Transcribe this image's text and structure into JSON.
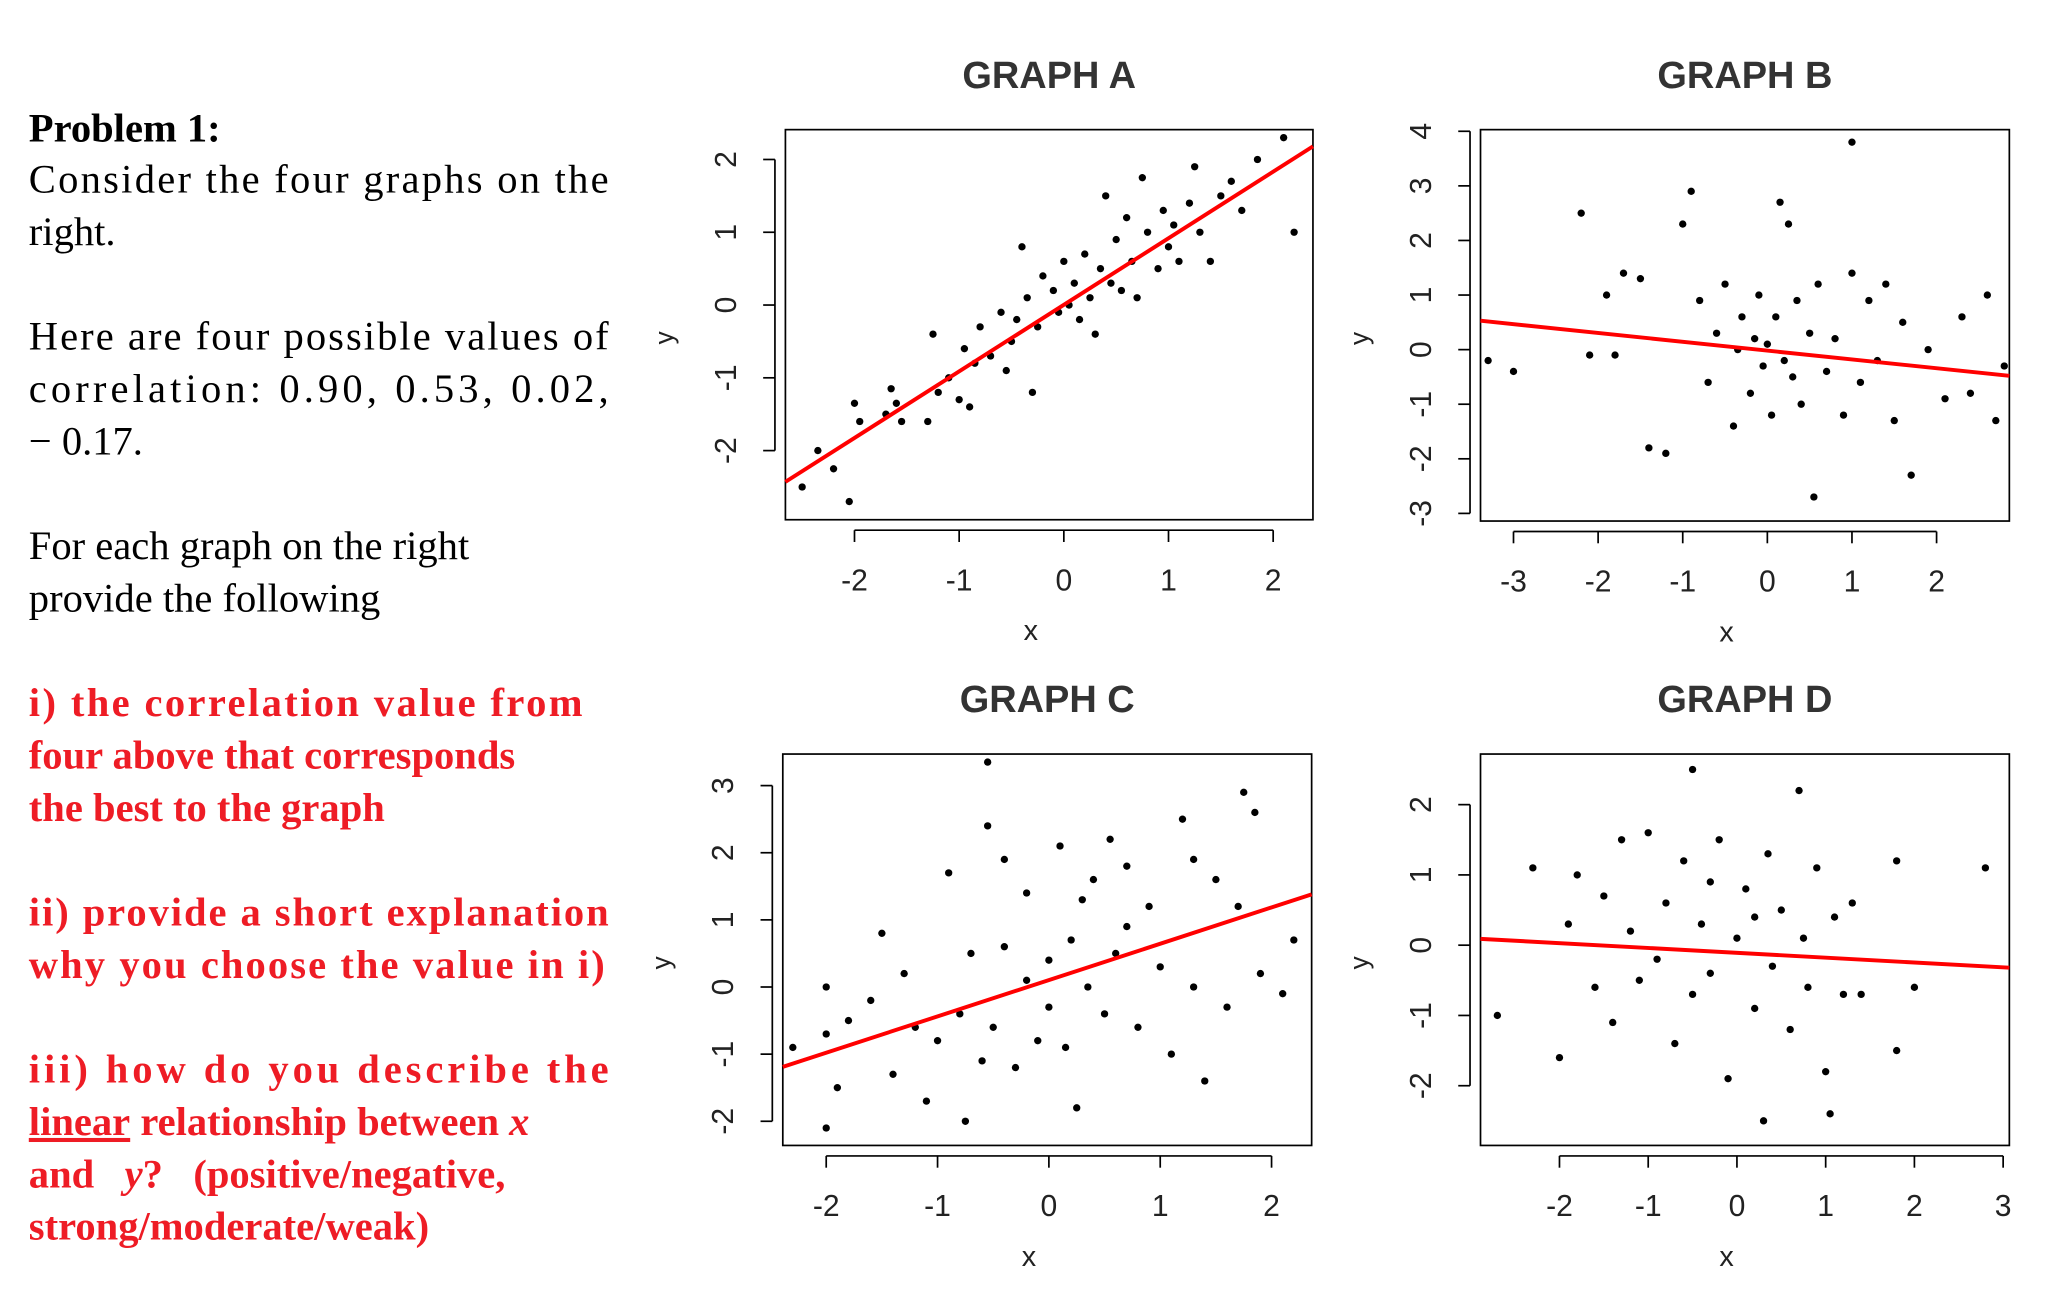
{
  "problem": {
    "heading": "Problem 1:",
    "intro": [
      "Consider the four graphs on the",
      "right."
    ],
    "values_text": [
      "Here are four possible values of",
      "correlation:  0.90,  0.53,  0.02,",
      "− 0.17."
    ],
    "instruction": [
      "For each graph on the right",
      "provide the following"
    ],
    "task_1": [
      "i)  the correlation value from",
      "four above that corresponds",
      "the best to the graph"
    ],
    "task_2": [
      "ii) provide a short explanation",
      "why you choose the value in i)"
    ],
    "task_3": [
      "iii) how do you describe the",
      [
        "linear",
        " relationship between ",
        "x"
      ],
      [
        "and   ",
        "y",
        "?   (positive/negative,"
      ],
      "strong/moderate/weak)"
    ]
  },
  "chart_data": [
    {
      "type": "scatter",
      "title": "GRAPH A",
      "x_label": "x",
      "y_label": "y",
      "color": "#000000",
      "xlim": [
        -2.66,
        2.38
      ],
      "ylim": [
        -2.95,
        2.41
      ],
      "xticks": [
        -2,
        -1,
        0,
        1,
        2
      ],
      "yticks": [
        -2,
        -1,
        0,
        1,
        2
      ],
      "x": [
        -2.5,
        -2.35,
        -2.2,
        -2.05,
        -2.0,
        -1.95,
        -1.7,
        -1.65,
        -1.6,
        -1.55,
        -1.3,
        -1.25,
        -1.2,
        -1.1,
        -1.0,
        -0.95,
        -0.9,
        -0.85,
        -0.8,
        -0.7,
        -0.6,
        -0.55,
        -0.5,
        -0.45,
        -0.4,
        -0.35,
        -0.3,
        -0.25,
        -0.2,
        -0.1,
        -0.05,
        0,
        0.05,
        0.1,
        0.15,
        0.2,
        0.25,
        0.3,
        0.35,
        0.4,
        0.45,
        0.5,
        0.55,
        0.6,
        0.65,
        0.7,
        0.75,
        0.8,
        0.9,
        0.95,
        1.0,
        1.05,
        1.1,
        1.2,
        1.25,
        1.3,
        1.4,
        1.5,
        1.6,
        1.7,
        1.85,
        2.1,
        2.2
      ],
      "y": [
        -2.5,
        -2.0,
        -2.25,
        -2.7,
        -1.35,
        -1.6,
        -1.5,
        -1.15,
        -1.35,
        -1.6,
        -1.6,
        -0.4,
        -1.2,
        -1.0,
        -1.3,
        -0.6,
        -1.4,
        -0.8,
        -0.3,
        -0.7,
        -0.1,
        -0.9,
        -0.5,
        -0.2,
        0.8,
        0.1,
        -1.2,
        -0.3,
        0.4,
        0.2,
        -0.1,
        0.6,
        0,
        0.3,
        -0.2,
        0.7,
        0.1,
        -0.4,
        0.5,
        1.5,
        0.3,
        0.9,
        0.2,
        1.2,
        0.6,
        0.1,
        1.75,
        1.0,
        0.5,
        1.3,
        0.8,
        1.1,
        0.6,
        1.4,
        1.9,
        1.0,
        0.6,
        1.5,
        1.7,
        1.3,
        2.0,
        2.3,
        1.0
      ],
      "fit_line": {
        "color": "#ff0000",
        "x": [
          -2.66,
          2.38
        ],
        "y": [
          -2.43,
          2.18
        ]
      }
    },
    {
      "type": "scatter",
      "title": "GRAPH B",
      "x_label": "x",
      "y_label": "y",
      "color": "#000000",
      "xlim": [
        -3.39,
        2.86
      ],
      "ylim": [
        -3.14,
        4.03
      ],
      "xticks": [
        -3,
        -2,
        -1,
        0,
        1,
        2
      ],
      "yticks": [
        -3,
        -2,
        -1,
        0,
        1,
        2,
        3,
        4
      ],
      "x": [
        -3.3,
        -3.0,
        -2.2,
        -2.1,
        -1.9,
        -1.8,
        -1.7,
        -1.5,
        -1.4,
        -1.2,
        -1.0,
        -0.9,
        -0.8,
        -0.7,
        -0.6,
        -0.5,
        -0.4,
        -0.35,
        -0.3,
        -0.2,
        -0.15,
        -0.1,
        -0.05,
        0,
        0.05,
        0.1,
        0.15,
        0.2,
        0.25,
        0.3,
        0.35,
        0.4,
        0.5,
        0.55,
        0.6,
        0.7,
        0.8,
        0.9,
        1.0,
        1.1,
        1.2,
        1.3,
        1.4,
        1.5,
        1.6,
        1.7,
        1.9,
        2.1,
        2.3,
        2.4,
        2.6,
        2.7,
        2.8,
        1.0
      ],
      "y": [
        -0.2,
        -0.4,
        2.5,
        -0.1,
        1.0,
        -0.1,
        1.4,
        1.3,
        -1.8,
        -1.9,
        2.3,
        2.9,
        0.9,
        -0.6,
        0.3,
        1.2,
        -1.4,
        0.0,
        0.6,
        -0.8,
        0.2,
        1.0,
        -0.3,
        0.1,
        -1.2,
        0.6,
        2.7,
        -0.2,
        2.3,
        -0.5,
        0.9,
        -1.0,
        0.3,
        -2.7,
        1.2,
        -0.4,
        0.2,
        -1.2,
        1.4,
        -0.6,
        0.9,
        -0.2,
        1.2,
        -1.3,
        0.5,
        -2.3,
        0.0,
        -0.9,
        0.6,
        -0.8,
        1.0,
        -1.3,
        -0.3,
        3.8
      ],
      "fit_line": {
        "color": "#ff0000",
        "x": [
          -3.39,
          2.86
        ],
        "y": [
          0.53,
          -0.48
        ]
      }
    },
    {
      "type": "scatter",
      "title": "GRAPH C",
      "x_label": "x",
      "y_label": "y",
      "color": "#000000",
      "xlim": [
        -2.39,
        2.36
      ],
      "ylim": [
        -2.36,
        3.47
      ],
      "xticks": [
        -2,
        -1,
        0,
        1,
        2
      ],
      "yticks": [
        -2,
        -1,
        0,
        1,
        2,
        3
      ],
      "x": [
        -2.0,
        -2.0,
        -2.0,
        -2.3,
        -1.9,
        -1.8,
        -1.6,
        -1.5,
        -1.4,
        -1.3,
        -1.2,
        -1.1,
        -1.0,
        -0.9,
        -0.8,
        -0.75,
        -0.7,
        -0.6,
        -0.55,
        -0.5,
        -0.4,
        -0.4,
        -0.3,
        -0.2,
        -0.1,
        0,
        0.1,
        0.15,
        0.2,
        0.25,
        0.3,
        0.35,
        0.4,
        0.5,
        0.55,
        0.6,
        0.7,
        0.8,
        0.9,
        1.0,
        1.1,
        1.2,
        1.3,
        1.4,
        1.5,
        1.6,
        1.7,
        1.75,
        1.85,
        1.9,
        2.1,
        2.2,
        1.3,
        0.7,
        0.0,
        -0.2,
        -0.55
      ],
      "y": [
        -2.1,
        -0.7,
        0.0,
        -0.9,
        -1.5,
        -0.5,
        -0.2,
        0.8,
        -1.3,
        0.2,
        -0.6,
        -1.7,
        -0.8,
        1.7,
        -0.4,
        -2.0,
        0.5,
        -1.1,
        2.4,
        -0.6,
        1.9,
        0.6,
        -1.2,
        0.1,
        -0.8,
        0.4,
        2.1,
        -0.9,
        0.7,
        -1.8,
        1.3,
        0.0,
        1.6,
        -0.4,
        2.2,
        0.5,
        1.8,
        -0.6,
        1.2,
        0.3,
        -1.0,
        2.5,
        0.0,
        -1.4,
        1.6,
        -0.3,
        1.2,
        2.9,
        2.6,
        0.2,
        -0.1,
        0.7,
        1.9,
        0.9,
        -0.3,
        1.4,
        3.35
      ],
      "fit_line": {
        "color": "#ff0000",
        "x": [
          -2.39,
          2.36
        ],
        "y": [
          -1.19,
          1.38
        ]
      }
    },
    {
      "type": "scatter",
      "title": "GRAPH D",
      "x_label": "x",
      "y_label": "y",
      "color": "#000000",
      "xlim": [
        -2.89,
        3.07
      ],
      "ylim": [
        -2.85,
        2.72
      ],
      "xticks": [
        -2,
        -1,
        0,
        1,
        2,
        3
      ],
      "yticks": [
        -2,
        -1,
        0,
        1,
        2
      ],
      "x": [
        -2.7,
        -2.3,
        -2.0,
        -1.9,
        -1.8,
        -1.6,
        -1.5,
        -1.4,
        -1.3,
        -1.2,
        -1.1,
        -1.0,
        -0.9,
        -0.8,
        -0.7,
        -0.6,
        -0.5,
        -0.5,
        -0.4,
        -0.3,
        -0.2,
        -0.1,
        0,
        0.1,
        0.2,
        0.3,
        0.35,
        0.4,
        0.5,
        0.6,
        0.7,
        0.75,
        0.8,
        0.9,
        1.0,
        1.05,
        1.1,
        1.2,
        1.3,
        1.4,
        1.8,
        1.8,
        2.0,
        2.8,
        -0.3,
        0.2
      ],
      "y": [
        -1.0,
        1.1,
        -1.6,
        0.3,
        1.0,
        -0.6,
        0.7,
        -1.1,
        1.5,
        0.2,
        -0.5,
        1.6,
        -0.2,
        0.6,
        -1.4,
        1.2,
        -0.7,
        2.5,
        0.3,
        -0.4,
        1.5,
        -1.9,
        0.1,
        0.8,
        -0.9,
        -2.5,
        1.3,
        -0.3,
        0.5,
        -1.2,
        2.2,
        0.1,
        -0.6,
        1.1,
        -1.8,
        -2.4,
        0.4,
        -0.7,
        0.6,
        -0.7,
        -1.5,
        1.2,
        -0.6,
        1.1,
        0.9,
        0.4
      ],
      "fit_line": {
        "color": "#ff0000",
        "x": [
          -2.89,
          3.07
        ],
        "y": [
          0.09,
          -0.32
        ]
      }
    }
  ]
}
